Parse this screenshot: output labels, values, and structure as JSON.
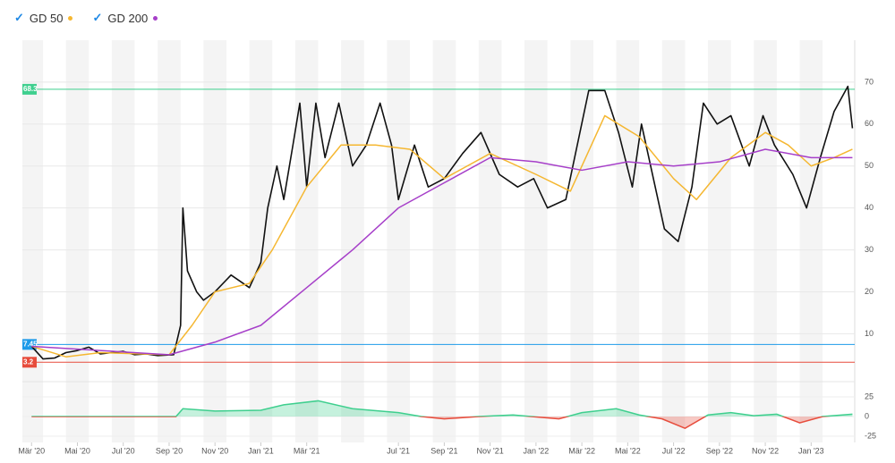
{
  "chart_data": [
    {
      "type": "line",
      "xlim": [
        -0.4,
        35.9
      ],
      "ylim": [
        -1,
        80
      ],
      "xticks": [
        {
          "value": 0,
          "label": "Mär '20"
        },
        {
          "value": 2,
          "label": "Mai '20"
        },
        {
          "value": 4,
          "label": "Jul '20"
        },
        {
          "value": 6,
          "label": "Sep '20"
        },
        {
          "value": 8,
          "label": "Nov '20"
        },
        {
          "value": 10,
          "label": "Jan '21"
        },
        {
          "value": 12,
          "label": "Mär '21"
        },
        {
          "value": 16,
          "label": "Jul '21"
        },
        {
          "value": 18,
          "label": "Sep '21"
        },
        {
          "value": 20,
          "label": "Nov '21"
        },
        {
          "value": 22,
          "label": "Jan '22"
        },
        {
          "value": 24,
          "label": "Mär '22"
        },
        {
          "value": 26,
          "label": "Mai '22"
        },
        {
          "value": 28,
          "label": "Jul '22"
        },
        {
          "value": 30,
          "label": "Sep '22"
        },
        {
          "value": 32,
          "label": "Nov '22"
        },
        {
          "value": 34,
          "label": "Jan '23"
        }
      ],
      "yticks": [
        10,
        20,
        30,
        40,
        50,
        60,
        70
      ],
      "levels": [
        {
          "value": 68.3,
          "label": "68.3",
          "color": "#3ecf8e"
        },
        {
          "value": 7.45,
          "label": "7.45",
          "color": "#1e9be9"
        },
        {
          "value": 3.2,
          "label": "3.2",
          "color": "#e74c3c"
        }
      ],
      "series": [
        {
          "color": "#111111",
          "x": [
            0,
            0.5,
            1,
            1.5,
            2,
            2.5,
            3,
            3.5,
            4,
            4.5,
            5,
            5.5,
            6.2,
            6.5,
            6.6,
            6.8,
            7.2,
            7.5,
            8,
            8.7,
            9.5,
            10,
            10.3,
            10.7,
            11,
            11.4,
            11.7,
            12,
            12.4,
            12.8,
            13.4,
            14,
            14.6,
            15.2,
            15.7,
            16,
            16.7,
            17.3,
            18,
            18.8,
            19.6,
            20.4,
            21.2,
            21.9,
            22.5,
            23.3,
            24.3,
            25,
            25.6,
            26.2,
            26.6,
            27.6,
            28.2,
            28.8,
            29.3,
            29.9,
            30.5,
            31.3,
            31.9,
            32.4,
            33.2,
            33.8,
            34.4,
            35,
            35.6,
            35.8
          ],
          "values": [
            7,
            4,
            4.2,
            5.5,
            6,
            6.8,
            5.2,
            5.5,
            5.8,
            5,
            5.2,
            4.8,
            5,
            12,
            40,
            25,
            20,
            18,
            20,
            24,
            21,
            27,
            40,
            50,
            42,
            55,
            65,
            45,
            65,
            52,
            65,
            50,
            55,
            65,
            55,
            42,
            55,
            45,
            47,
            53,
            58,
            48,
            45,
            47,
            40,
            42,
            68,
            68,
            58,
            45,
            60,
            35,
            32,
            45,
            65,
            60,
            62,
            50,
            62,
            55,
            48,
            40,
            52,
            63,
            69,
            59
          ]
        },
        {
          "name": "GD 50",
          "color": "#f5b731",
          "x": [
            0,
            1.5,
            3,
            6,
            7,
            8,
            9.5,
            10.5,
            12,
            13.5,
            15,
            16.5,
            18,
            20,
            22,
            23.5,
            25,
            26.5,
            28,
            29,
            30.5,
            32,
            33,
            34,
            35,
            35.8
          ],
          "values": [
            7,
            4.5,
            5.5,
            5,
            12,
            20,
            22,
            30,
            45,
            55,
            55,
            54,
            47,
            53,
            48,
            44,
            62,
            57,
            47,
            42,
            52,
            58,
            55,
            50,
            52,
            54
          ]
        },
        {
          "name": "GD 200",
          "color": "#a63fc9",
          "x": [
            0,
            6,
            8,
            10,
            12,
            14,
            16,
            18,
            20,
            22,
            24,
            26,
            28,
            30,
            32,
            34,
            35.8
          ],
          "values": [
            7,
            5,
            8,
            12,
            21,
            30,
            40,
            46,
            52,
            51,
            49,
            51,
            50,
            51,
            54,
            52,
            52
          ]
        }
      ]
    },
    {
      "type": "area",
      "xlim": [
        -0.4,
        35.9
      ],
      "ylim": [
        -33,
        41
      ],
      "yticks": [
        25,
        0,
        -25
      ],
      "pos_color": "#3ecf8e",
      "neg_color": "#e74c3c",
      "x": [
        0,
        6.3,
        6.6,
        8,
        10,
        11,
        12.5,
        14,
        16,
        17,
        18,
        19.5,
        21,
        23,
        24,
        25.5,
        26.5,
        27.5,
        28.5,
        29.5,
        30.5,
        31.5,
        32.5,
        33.5,
        34.5,
        35.8
      ],
      "values": [
        0,
        0,
        10,
        7,
        8,
        15,
        20,
        10,
        5,
        0,
        -3,
        0,
        2,
        -3,
        5,
        10,
        2,
        -3,
        -15,
        2,
        5,
        1,
        3,
        -8,
        0,
        3
      ]
    }
  ]
}
